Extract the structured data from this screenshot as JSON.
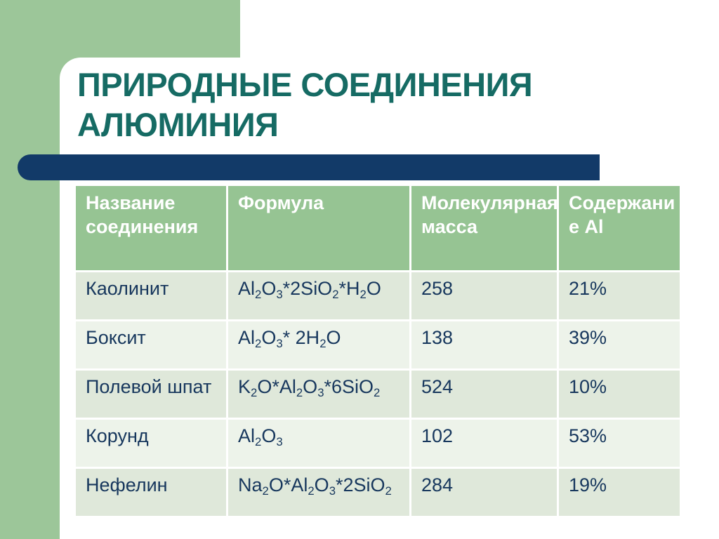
{
  "slide": {
    "title": "ПРИРОДНЫЕ СОЕДИНЕНИЯ\nАЛЮМИНИЯ"
  },
  "colors": {
    "background_green": "#9CC699",
    "panel_white": "#FFFFFF",
    "header_green": "#96C493",
    "accent_bar_navy": "#123A68",
    "title_teal": "#166B64",
    "text_navy": "#17375D",
    "row_odd": "#DFE8DA",
    "row_even": "#EDF3EA"
  },
  "table": {
    "headers": [
      "Название\nсоединения",
      "Формула",
      "Молекулярная\nмасса",
      "Содержани\nе Al"
    ],
    "rows": [
      {
        "name": "Каолинит",
        "formula": "Al<sub>2</sub>O<sub>3</sub>*2SiO<sub>2</sub>*H<sub>2</sub>O",
        "mass": "258",
        "content": "21%"
      },
      {
        "name": "Боксит",
        "formula": "Al<sub>2</sub>O<sub>3</sub>* 2H<sub>2</sub>O",
        "mass": "138",
        "content": "39%"
      },
      {
        "name": "Полевой шпат",
        "formula": "K<sub>2</sub>O*Al<sub>2</sub>O<sub>3</sub>*6SiO<sub>2</sub>",
        "mass": "524",
        "content": "10%"
      },
      {
        "name": "Корунд",
        "formula": "Al<sub>2</sub>O<sub>3</sub>",
        "mass": "102",
        "content": "53%"
      },
      {
        "name": "Нефелин",
        "formula": "Na<sub>2</sub>O*Al<sub>2</sub>O<sub>3</sub>*2SiO<sub>2</sub>",
        "mass": "284",
        "content": "19%"
      }
    ]
  }
}
